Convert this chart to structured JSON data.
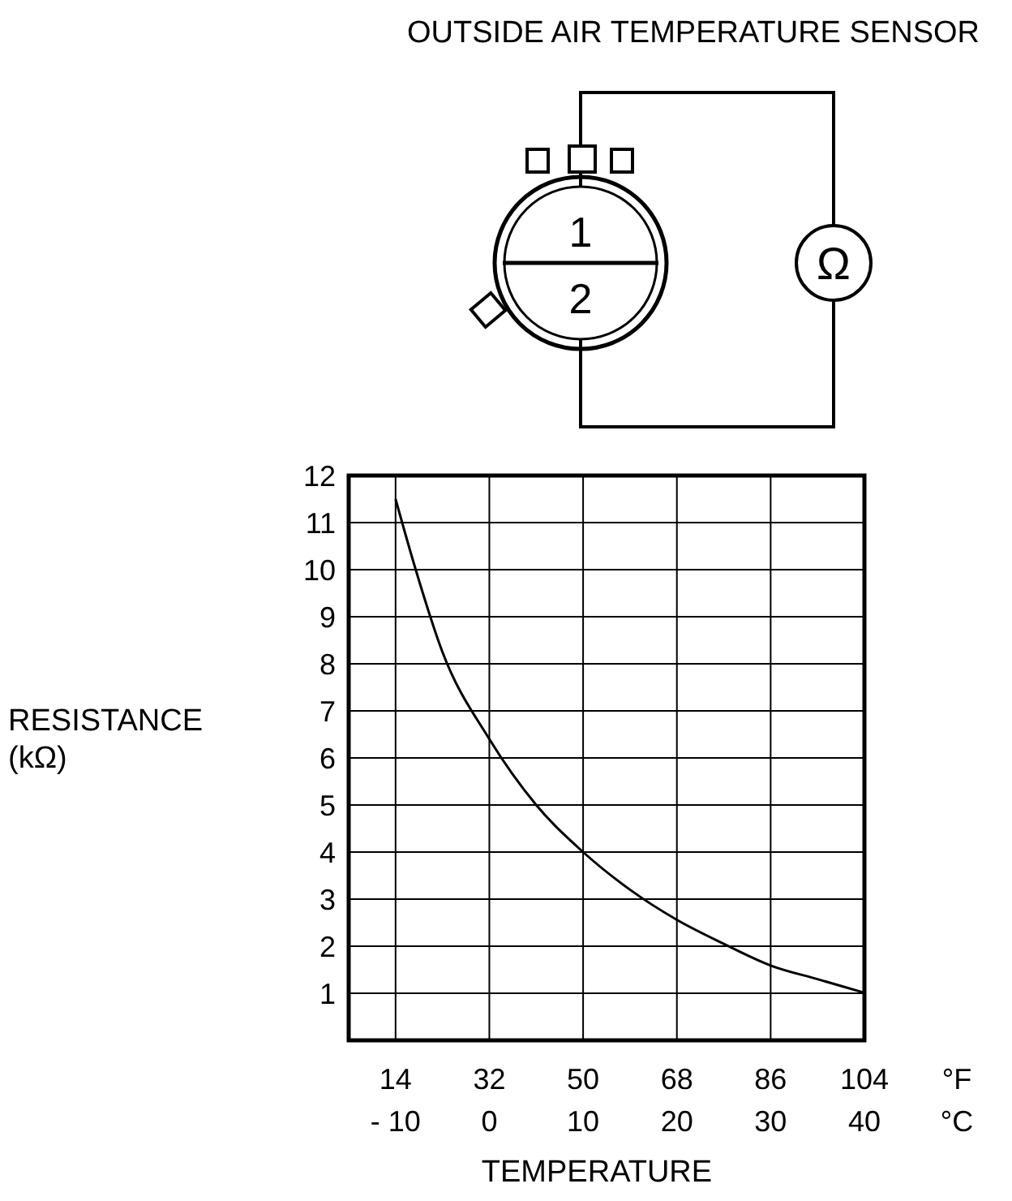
{
  "chart_data": {
    "type": "line",
    "title": "OUTSIDE AIR TEMPERATURE SENSOR",
    "xlabel": "TEMPERATURE",
    "ylabel": "RESISTANCE (kΩ)",
    "x2label": "°F",
    "annotations": [
      "°C",
      "1",
      "2",
      "Ω"
    ],
    "x": [
      -10,
      -8,
      -5,
      0,
      5,
      10,
      15,
      20,
      25,
      30,
      35,
      40
    ],
    "series": [
      {
        "color": "#000000",
        "values": [
          11.5,
          10.1,
          8.25,
          6.4,
          5.0,
          4.0,
          3.2,
          2.56,
          2.05,
          1.59,
          1.3,
          1.01
        ]
      }
    ],
    "xlim": [
      -15,
      40
    ],
    "xticks": [
      {
        "value": -10,
        "label": "- 10"
      },
      0,
      10,
      20,
      30,
      40
    ],
    "x2lim": [
      5,
      104
    ],
    "x2ticks": [
      14,
      32,
      50,
      68,
      86,
      104
    ],
    "ylim": [
      0,
      12
    ],
    "yticks": [
      1,
      2,
      3,
      4,
      5,
      6,
      7,
      8,
      9,
      10,
      11,
      12
    ],
    "grid": true,
    "marker": "none",
    "line_style": "solid"
  }
}
